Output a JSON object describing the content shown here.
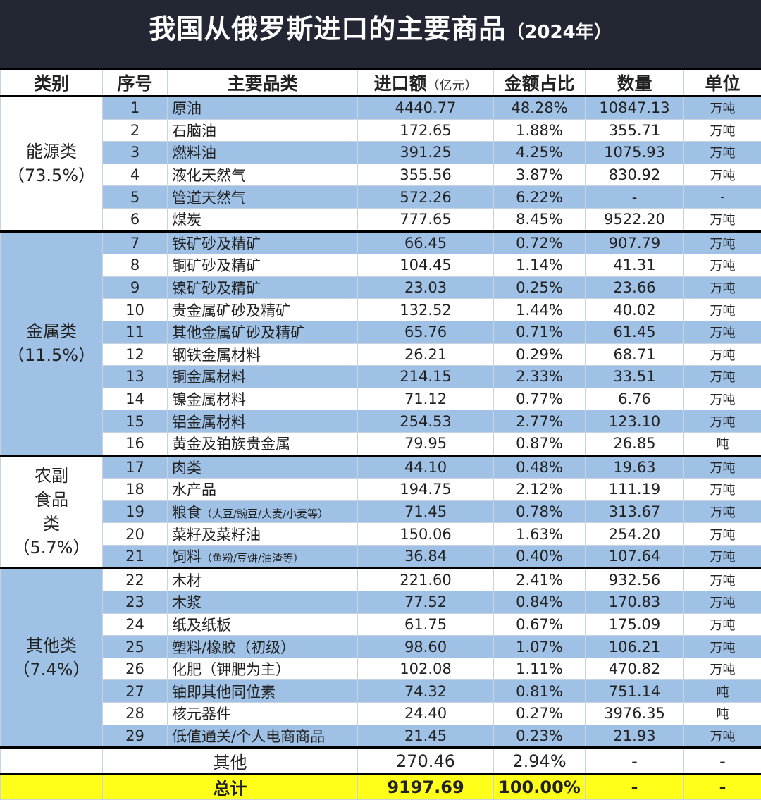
{
  "title": {
    "main": "我国从俄罗斯进口的主要商品",
    "year": "（2024年）"
  },
  "headers": {
    "category": "类别",
    "no": "序号",
    "item": "主要品类",
    "amount": "进口额",
    "amount_unit": "（亿元）",
    "share": "金额占比",
    "qty": "数量",
    "unit": "单位"
  },
  "colors": {
    "header_bg": "#222733",
    "row_blue": "#9fc1e6",
    "total_bg": "#ffff1a"
  },
  "groups": [
    {
      "name": "能源类",
      "share": "（73.5%）",
      "rows": [
        [
          "1",
          "原油",
          "",
          "4440.77",
          "48.28%",
          "10847.13",
          "万吨"
        ],
        [
          "2",
          "石脑油",
          "",
          "172.65",
          "1.88%",
          "355.71",
          "万吨"
        ],
        [
          "3",
          "燃料油",
          "",
          "391.25",
          "4.25%",
          "1075.93",
          "万吨"
        ],
        [
          "4",
          "液化天然气",
          "",
          "355.56",
          "3.87%",
          "830.92",
          "万吨"
        ],
        [
          "5",
          "管道天然气",
          "",
          "572.26",
          "6.22%",
          "-",
          "-"
        ],
        [
          "6",
          "煤炭",
          "",
          "777.65",
          "8.45%",
          "9522.20",
          "万吨"
        ]
      ]
    },
    {
      "name": "金属类",
      "share": "（11.5%）",
      "rows": [
        [
          "7",
          "铁矿砂及精矿",
          "",
          "66.45",
          "0.72%",
          "907.79",
          "万吨"
        ],
        [
          "8",
          "铜矿砂及精矿",
          "",
          "104.45",
          "1.14%",
          "41.31",
          "万吨"
        ],
        [
          "9",
          "镍矿砂及精矿",
          "",
          "23.03",
          "0.25%",
          "23.66",
          "万吨"
        ],
        [
          "10",
          "贵金属矿砂及精矿",
          "",
          "132.52",
          "1.44%",
          "40.02",
          "万吨"
        ],
        [
          "11",
          "其他金属矿砂及精矿",
          "",
          "65.76",
          "0.71%",
          "61.45",
          "万吨"
        ],
        [
          "12",
          "钢铁金属材料",
          "",
          "26.21",
          "0.29%",
          "68.71",
          "万吨"
        ],
        [
          "13",
          "铜金属材料",
          "",
          "214.15",
          "2.33%",
          "33.51",
          "万吨"
        ],
        [
          "14",
          "镍金属材料",
          "",
          "71.12",
          "0.77%",
          "6.76",
          "万吨"
        ],
        [
          "15",
          "铝金属材料",
          "",
          "254.53",
          "2.77%",
          "123.10",
          "万吨"
        ],
        [
          "16",
          "黄金及铂族贵金属",
          "",
          "79.95",
          "0.87%",
          "26.85",
          "吨"
        ]
      ]
    },
    {
      "name": "农副食品类",
      "share": "（5.7%）",
      "rows": [
        [
          "17",
          "肉类",
          "",
          "44.10",
          "0.48%",
          "19.63",
          "万吨"
        ],
        [
          "18",
          "水产品",
          "",
          "194.75",
          "2.12%",
          "111.19",
          "万吨"
        ],
        [
          "19",
          "粮食",
          "（大豆/豌豆/大麦/小麦等）",
          "71.45",
          "0.78%",
          "313.67",
          "万吨"
        ],
        [
          "20",
          "菜籽及菜籽油",
          "",
          "150.06",
          "1.63%",
          "254.20",
          "万吨"
        ],
        [
          "21",
          "饲料",
          "（鱼粉/豆饼/油渣等）",
          "36.84",
          "0.40%",
          "107.64",
          "万吨"
        ]
      ]
    },
    {
      "name": "其他类",
      "share": "（7.4%）",
      "rows": [
        [
          "22",
          "木材",
          "",
          "221.60",
          "2.41%",
          "932.56",
          "万吨"
        ],
        [
          "23",
          "木浆",
          "",
          "77.52",
          "0.84%",
          "170.83",
          "万吨"
        ],
        [
          "24",
          "纸及纸板",
          "",
          "61.75",
          "0.67%",
          "175.09",
          "万吨"
        ],
        [
          "25",
          "塑料/橡胶（初级）",
          "",
          "98.60",
          "1.07%",
          "106.21",
          "万吨"
        ],
        [
          "26",
          "化肥（钾肥为主）",
          "",
          "102.08",
          "1.11%",
          "470.82",
          "万吨"
        ],
        [
          "27",
          "铀即其他同位素",
          "",
          "74.32",
          "0.81%",
          "751.14",
          "吨"
        ],
        [
          "28",
          "核元器件",
          "",
          "24.40",
          "0.27%",
          "3976.35",
          "吨"
        ],
        [
          "29",
          "低值通关/个人电商商品",
          "",
          "21.45",
          "0.23%",
          "21.93",
          "万吨"
        ]
      ]
    }
  ],
  "other_row": {
    "label": "其他",
    "amount": "270.46",
    "share": "2.94%",
    "qty": "-",
    "unit": "-"
  },
  "total_row": {
    "label": "总计",
    "amount": "9197.69",
    "share": "100.00%",
    "qty": "-",
    "unit": "-"
  }
}
